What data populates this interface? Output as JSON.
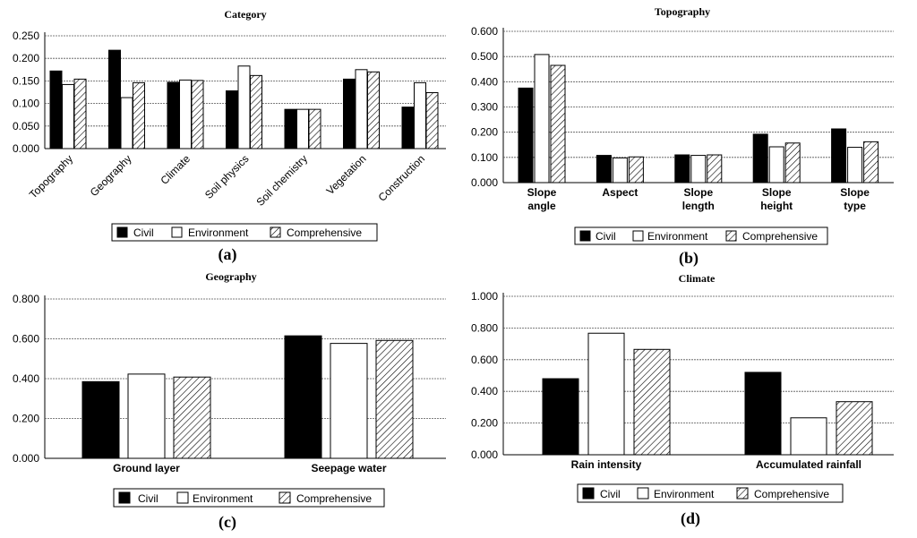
{
  "colors": {
    "civil": "#000000",
    "environment": "#ffffff",
    "hatch": "#000000"
  },
  "chart_data": [
    {
      "type": "bar",
      "title": "Category",
      "panel_label": "(a)",
      "categories": [
        "Topography",
        "Geography",
        "Climate",
        "Soil physics",
        "Soil chemistry",
        "Vegetation",
        "Construction"
      ],
      "series": [
        {
          "name": "Civil",
          "values": [
            0.172,
            0.218,
            0.147,
            0.128,
            0.087,
            0.154,
            0.092
          ]
        },
        {
          "name": "Environment",
          "values": [
            0.142,
            0.113,
            0.152,
            0.183,
            0.087,
            0.175,
            0.146
          ]
        },
        {
          "name": "Comprehensive",
          "values": [
            0.154,
            0.146,
            0.151,
            0.162,
            0.087,
            0.17,
            0.124
          ]
        }
      ],
      "ylim": [
        0,
        0.25
      ],
      "yticks": [
        "0.000",
        "0.050",
        "0.100",
        "0.150",
        "0.200",
        "0.250"
      ],
      "xlabel": "",
      "ylabel": "",
      "legend": [
        "Civil",
        "Environment",
        "Comprehensive"
      ]
    },
    {
      "type": "bar",
      "title": "Topography",
      "panel_label": "(b)",
      "categories": [
        [
          "Slope",
          "angle"
        ],
        [
          "Aspect"
        ],
        [
          "Slope",
          "length"
        ],
        [
          "Slope",
          "height"
        ],
        [
          "Slope",
          "type"
        ]
      ],
      "series": [
        {
          "name": "Civil",
          "values": [
            0.375,
            0.108,
            0.11,
            0.192,
            0.213
          ]
        },
        {
          "name": "Environment",
          "values": [
            0.508,
            0.098,
            0.108,
            0.142,
            0.14
          ]
        },
        {
          "name": "Comprehensive",
          "values": [
            0.465,
            0.102,
            0.11,
            0.157,
            0.162
          ]
        }
      ],
      "ylim": [
        0,
        0.6
      ],
      "yticks": [
        "0.000",
        "0.100",
        "0.200",
        "0.300",
        "0.400",
        "0.500",
        "0.600"
      ],
      "xlabel": "",
      "ylabel": "",
      "legend": [
        "Civil",
        "Environment",
        "Comprehensive"
      ]
    },
    {
      "type": "bar",
      "title": "Geography",
      "panel_label": "(c)",
      "categories": [
        "Ground layer",
        "Seepage water"
      ],
      "series": [
        {
          "name": "Civil",
          "values": [
            0.385,
            0.615
          ]
        },
        {
          "name": "Environment",
          "values": [
            0.423,
            0.577
          ]
        },
        {
          "name": "Comprehensive",
          "values": [
            0.408,
            0.592
          ]
        }
      ],
      "ylim": [
        0,
        0.8
      ],
      "yticks": [
        "0.000",
        "0.200",
        "0.400",
        "0.600",
        "0.800"
      ],
      "xlabel": "",
      "ylabel": "",
      "legend": [
        "Civil",
        "Environment",
        "Comprehensive"
      ]
    },
    {
      "type": "bar",
      "title": "Climate",
      "panel_label": "(d)",
      "categories": [
        "Rain intensity",
        "Accumulated rainfall"
      ],
      "series": [
        {
          "name": "Civil",
          "values": [
            0.48,
            0.52
          ]
        },
        {
          "name": "Environment",
          "values": [
            0.767,
            0.233
          ]
        },
        {
          "name": "Comprehensive",
          "values": [
            0.665,
            0.335
          ]
        }
      ],
      "ylim": [
        0,
        1.0
      ],
      "yticks": [
        "0.000",
        "0.200",
        "0.400",
        "0.600",
        "0.800",
        "1.000"
      ],
      "xlabel": "",
      "ylabel": "",
      "legend": [
        "Civil",
        "Environment",
        "Comprehensive"
      ]
    }
  ]
}
